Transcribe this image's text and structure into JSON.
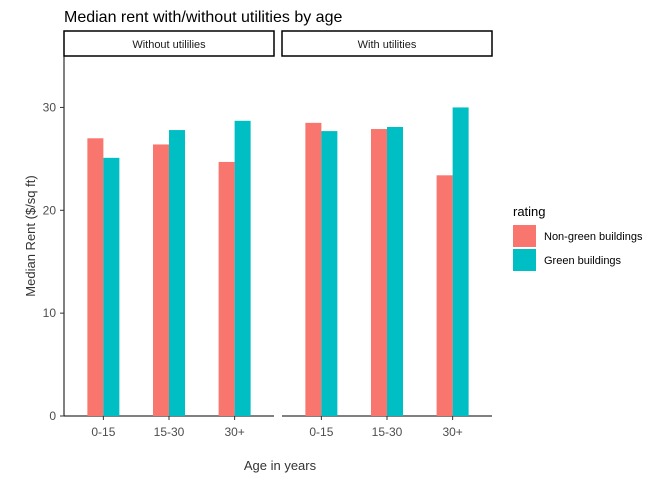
{
  "chart_data": {
    "type": "bar",
    "title": "Median rent with/without utilities by age",
    "xlabel": "Age in years",
    "ylabel": "Median Rent ($/sq ft)",
    "ylim": [
      0,
      35
    ],
    "yticks": [
      0,
      10,
      20,
      30
    ],
    "categories": [
      "0-15",
      "15-30",
      "30+"
    ],
    "legend": {
      "title": "rating",
      "position": "right",
      "items": [
        {
          "name": "Non-green buildings",
          "color": "#F8766D"
        },
        {
          "name": "Green buildings",
          "color": "#00BFC4"
        }
      ]
    },
    "panels": [
      {
        "name": "Without utilities",
        "strip_label": "Without utililies",
        "series": [
          {
            "name": "Non-green buildings",
            "values": [
              27.0,
              26.4,
              24.7
            ]
          },
          {
            "name": "Green buildings",
            "values": [
              25.1,
              27.8,
              28.7
            ]
          }
        ]
      },
      {
        "name": "With utilities",
        "strip_label": "With utilities",
        "series": [
          {
            "name": "Non-green buildings",
            "values": [
              28.5,
              27.9,
              23.4
            ]
          },
          {
            "name": "Green buildings",
            "values": [
              27.7,
              28.1,
              30.0
            ]
          }
        ]
      }
    ],
    "grid": false
  }
}
